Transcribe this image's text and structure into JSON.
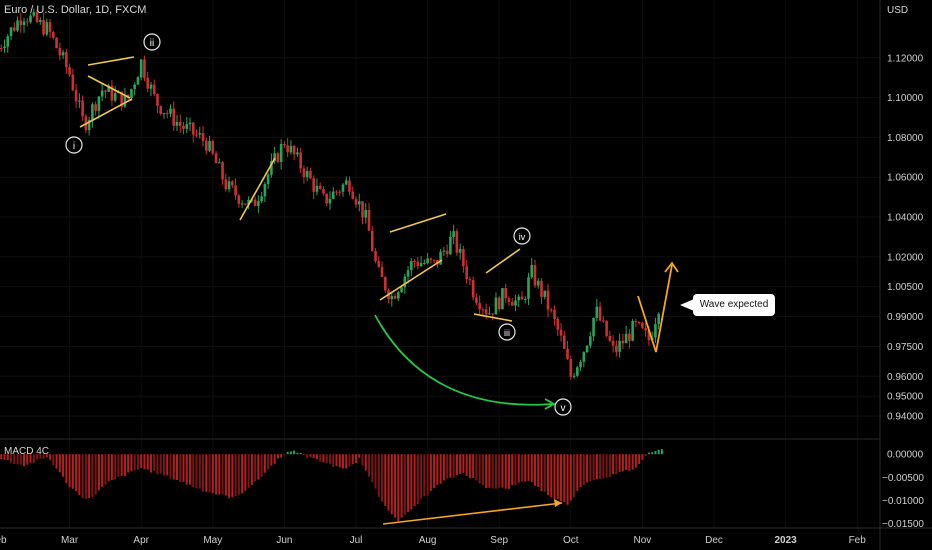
{
  "header": {
    "symbol_title": "Euro / U.S. Dollar, 1D, FXCM",
    "currency": "USD"
  },
  "annotations": {
    "callout_text": "Wave expected",
    "wave_labels": [
      "i",
      "ii",
      "iii",
      "iv",
      "v"
    ]
  },
  "colors": {
    "bull": "#26a65b",
    "bear": "#d02f2f",
    "trendline": "#f2c94c",
    "projection": "#f5a623",
    "curve_arrow": "#27c93f",
    "background": "#000000"
  },
  "chart_data": [
    {
      "type": "candlestick",
      "title": "Euro / U.S. Dollar, 1D, FXCM",
      "x_tick_labels": [
        "Feb",
        "Mar",
        "Apr",
        "May",
        "Jun",
        "Jul",
        "Aug",
        "Sep",
        "Oct",
        "Nov",
        "Dec",
        "2023",
        "Feb"
      ],
      "y_tick_labels": [
        "1.12000",
        "1.10000",
        "1.08000",
        "1.06000",
        "1.04000",
        "1.02000",
        "1.00500",
        "0.99000",
        "0.97500",
        "0.96000",
        "0.95000",
        "0.94000"
      ],
      "ylim": [
        0.932,
        1.145
      ],
      "x_range": [
        "2022-02",
        "2023-02"
      ],
      "price_path": [
        {
          "month": 0.0,
          "price": 1.125
        },
        {
          "month": 0.35,
          "price": 1.142
        },
        {
          "month": 0.7,
          "price": 1.134
        },
        {
          "month": 1.0,
          "price": 1.112
        },
        {
          "month": 1.2,
          "price": 1.086
        },
        {
          "month": 1.45,
          "price": 1.104
        },
        {
          "month": 1.8,
          "price": 1.098
        },
        {
          "month": 2.0,
          "price": 1.118
        },
        {
          "month": 2.2,
          "price": 1.098
        },
        {
          "month": 2.55,
          "price": 1.086
        },
        {
          "month": 2.9,
          "price": 1.078
        },
        {
          "month": 3.2,
          "price": 1.055
        },
        {
          "month": 3.55,
          "price": 1.045
        },
        {
          "month": 4.0,
          "price": 1.078
        },
        {
          "month": 4.3,
          "price": 1.062
        },
        {
          "month": 4.55,
          "price": 1.048
        },
        {
          "month": 4.9,
          "price": 1.058
        },
        {
          "month": 5.15,
          "price": 1.038
        },
        {
          "month": 5.3,
          "price": 1.012
        },
        {
          "month": 5.5,
          "price": 1.0
        },
        {
          "month": 5.8,
          "price": 1.018
        },
        {
          "month": 6.1,
          "price": 1.016
        },
        {
          "month": 6.35,
          "price": 1.03
        },
        {
          "month": 6.65,
          "price": 1.002
        },
        {
          "month": 6.85,
          "price": 0.992
        },
        {
          "month": 7.1,
          "price": 1.002
        },
        {
          "month": 7.3,
          "price": 0.995
        },
        {
          "month": 7.45,
          "price": 1.012
        },
        {
          "month": 7.65,
          "price": 0.998
        },
        {
          "month": 7.85,
          "price": 0.98
        },
        {
          "month": 8.0,
          "price": 0.96
        },
        {
          "month": 8.2,
          "price": 0.975
        },
        {
          "month": 8.35,
          "price": 0.993
        },
        {
          "month": 8.6,
          "price": 0.972
        },
        {
          "month": 8.9,
          "price": 0.985
        },
        {
          "month": 9.1,
          "price": 0.978
        },
        {
          "month": 9.25,
          "price": 0.999
        }
      ]
    },
    {
      "type": "bar",
      "title": "MACD 4C",
      "y_tick_labels": [
        "0.00000",
        "-0.00500",
        "-0.01000",
        "-0.01500"
      ],
      "ylim": [
        -0.0155,
        0.0022
      ],
      "x_range": [
        "2022-02",
        "2023-02"
      ],
      "histogram_path": [
        {
          "month": 0.0,
          "value": -0.0008
        },
        {
          "month": 0.35,
          "value": -0.0025
        },
        {
          "month": 0.7,
          "value": -0.0006
        },
        {
          "month": 1.0,
          "value": -0.007
        },
        {
          "month": 1.25,
          "value": -0.01
        },
        {
          "month": 1.55,
          "value": -0.006
        },
        {
          "month": 2.0,
          "value": -0.003
        },
        {
          "month": 2.4,
          "value": -0.005
        },
        {
          "month": 2.9,
          "value": -0.008
        },
        {
          "month": 3.3,
          "value": -0.0095
        },
        {
          "month": 3.6,
          "value": -0.006
        },
        {
          "month": 3.95,
          "value": -0.0005
        },
        {
          "month": 4.1,
          "value": 0.0009
        },
        {
          "month": 4.3,
          "value": -0.0005
        },
        {
          "month": 4.6,
          "value": -0.002
        },
        {
          "month": 4.85,
          "value": -0.0035
        },
        {
          "month": 5.05,
          "value": -0.001
        },
        {
          "month": 5.35,
          "value": -0.01
        },
        {
          "month": 5.6,
          "value": -0.0145
        },
        {
          "month": 5.9,
          "value": -0.01
        },
        {
          "month": 6.2,
          "value": -0.006
        },
        {
          "month": 6.5,
          "value": -0.004
        },
        {
          "month": 6.8,
          "value": -0.007
        },
        {
          "month": 7.1,
          "value": -0.0075
        },
        {
          "month": 7.4,
          "value": -0.0055
        },
        {
          "month": 7.7,
          "value": -0.009
        },
        {
          "month": 7.95,
          "value": -0.0108
        },
        {
          "month": 8.2,
          "value": -0.006
        },
        {
          "month": 8.6,
          "value": -0.0045
        },
        {
          "month": 8.9,
          "value": -0.003
        },
        {
          "month": 9.1,
          "value": 0.0005
        },
        {
          "month": 9.3,
          "value": 0.0015
        }
      ]
    }
  ]
}
